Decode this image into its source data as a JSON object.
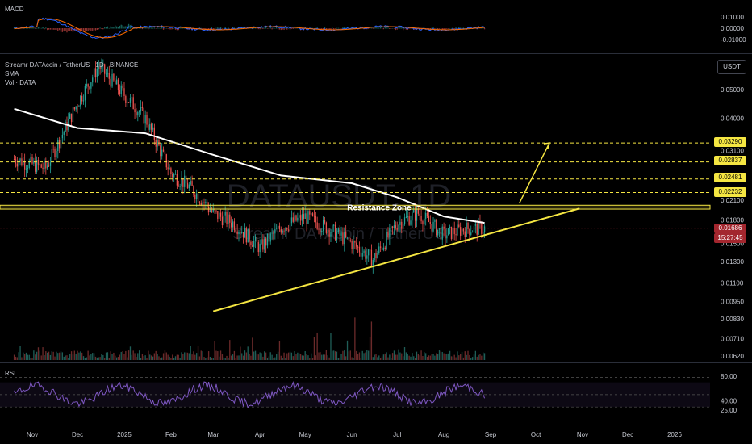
{
  "chart_header": {
    "symbol_line": "Streamr DATAcoin / TetherUS · 1D · BINANCE",
    "indicator_sma": "SMA",
    "indicator_vol": "Vol · DATA",
    "currency_button": "USDT"
  },
  "watermark": {
    "ticker": "DATAUSDT, 1D",
    "subtitle": "Streamr DATAcoin / TetherUS"
  },
  "annotation": {
    "resistance_label": "Resistance Zone"
  },
  "price_tags": {
    "targets": [
      "0.03290",
      "0.02837",
      "0.02481",
      "0.02232"
    ],
    "current_price": "0.01686",
    "countdown": "15:27:45"
  },
  "colors": {
    "up": "#26a69a",
    "down": "#ef5350",
    "sma": "#ffffff",
    "annotation": "#f5e642",
    "rsi": "#7e57c2"
  },
  "macd_pane": {
    "title": "MACD",
    "axis_labels": [
      "0.01000",
      "0.00000",
      "-0.01000"
    ]
  },
  "rsi_pane": {
    "title": "RSI",
    "axis_labels": [
      "80.00",
      "40.00",
      "25.00"
    ]
  },
  "chart_data": {
    "type": "candlestick",
    "title": "Streamr DATAcoin / TetherUS · 1D · BINANCE",
    "scale": "log",
    "y_axis_labels": [
      "0.05000",
      "0.04000",
      "0.03100",
      "0.02100",
      "0.01800",
      "0.01500",
      "0.01300",
      "0.01100",
      "0.00950",
      "0.00830",
      "0.00710",
      "0.00620"
    ],
    "x_axis_labels": [
      "Nov",
      "Dec",
      "2025",
      "Feb",
      "Mar",
      "Apr",
      "May",
      "Jun",
      "Jul",
      "Aug",
      "Sep",
      "Oct",
      "Nov",
      "Dec",
      "2026"
    ],
    "close_path": [
      {
        "date": "2024-10-20",
        "close": 0.029
      },
      {
        "date": "2024-11-10",
        "close": 0.027
      },
      {
        "date": "2024-12-01",
        "close": 0.045
      },
      {
        "date": "2024-12-15",
        "close": 0.06
      },
      {
        "date": "2025-01-01",
        "close": 0.048
      },
      {
        "date": "2025-01-15",
        "close": 0.04
      },
      {
        "date": "2025-02-01",
        "close": 0.026
      },
      {
        "date": "2025-02-15",
        "close": 0.023
      },
      {
        "date": "2025-03-01",
        "close": 0.019
      },
      {
        "date": "2025-03-15",
        "close": 0.0175
      },
      {
        "date": "2025-04-01",
        "close": 0.0145
      },
      {
        "date": "2025-04-15",
        "close": 0.017
      },
      {
        "date": "2025-05-01",
        "close": 0.0185
      },
      {
        "date": "2025-05-15",
        "close": 0.017
      },
      {
        "date": "2025-06-01",
        "close": 0.015
      },
      {
        "date": "2025-06-15",
        "close": 0.0132
      },
      {
        "date": "2025-07-01",
        "close": 0.0175
      },
      {
        "date": "2025-07-15",
        "close": 0.019
      },
      {
        "date": "2025-08-01",
        "close": 0.016
      },
      {
        "date": "2025-08-15",
        "close": 0.0168
      },
      {
        "date": "2025-08-28",
        "close": 0.01686
      }
    ],
    "sma_path": [
      {
        "date": "2024-10-20",
        "value": 0.043
      },
      {
        "date": "2024-12-01",
        "value": 0.037
      },
      {
        "date": "2025-01-15",
        "value": 0.0355
      },
      {
        "date": "2025-03-01",
        "value": 0.03
      },
      {
        "date": "2025-04-15",
        "value": 0.0255
      },
      {
        "date": "2025-06-01",
        "value": 0.024
      },
      {
        "date": "2025-07-01",
        "value": 0.0215
      },
      {
        "date": "2025-08-01",
        "value": 0.0185
      },
      {
        "date": "2025-08-28",
        "value": 0.0176
      }
    ],
    "horizontal_levels": [
      0.0329,
      0.02837,
      0.02481,
      0.02232
    ],
    "resistance_zone": [
      0.0196,
      0.0202
    ],
    "support_trendline": [
      {
        "date": "2025-03-01",
        "value": 0.0088
      },
      {
        "date": "2025-10-30",
        "value": 0.0197
      }
    ],
    "projection_arrow": [
      {
        "date": "2025-09-20",
        "value": 0.0205
      },
      {
        "date": "2025-10-10",
        "value": 0.0329
      }
    ],
    "legend": "top-left",
    "grid": false
  }
}
